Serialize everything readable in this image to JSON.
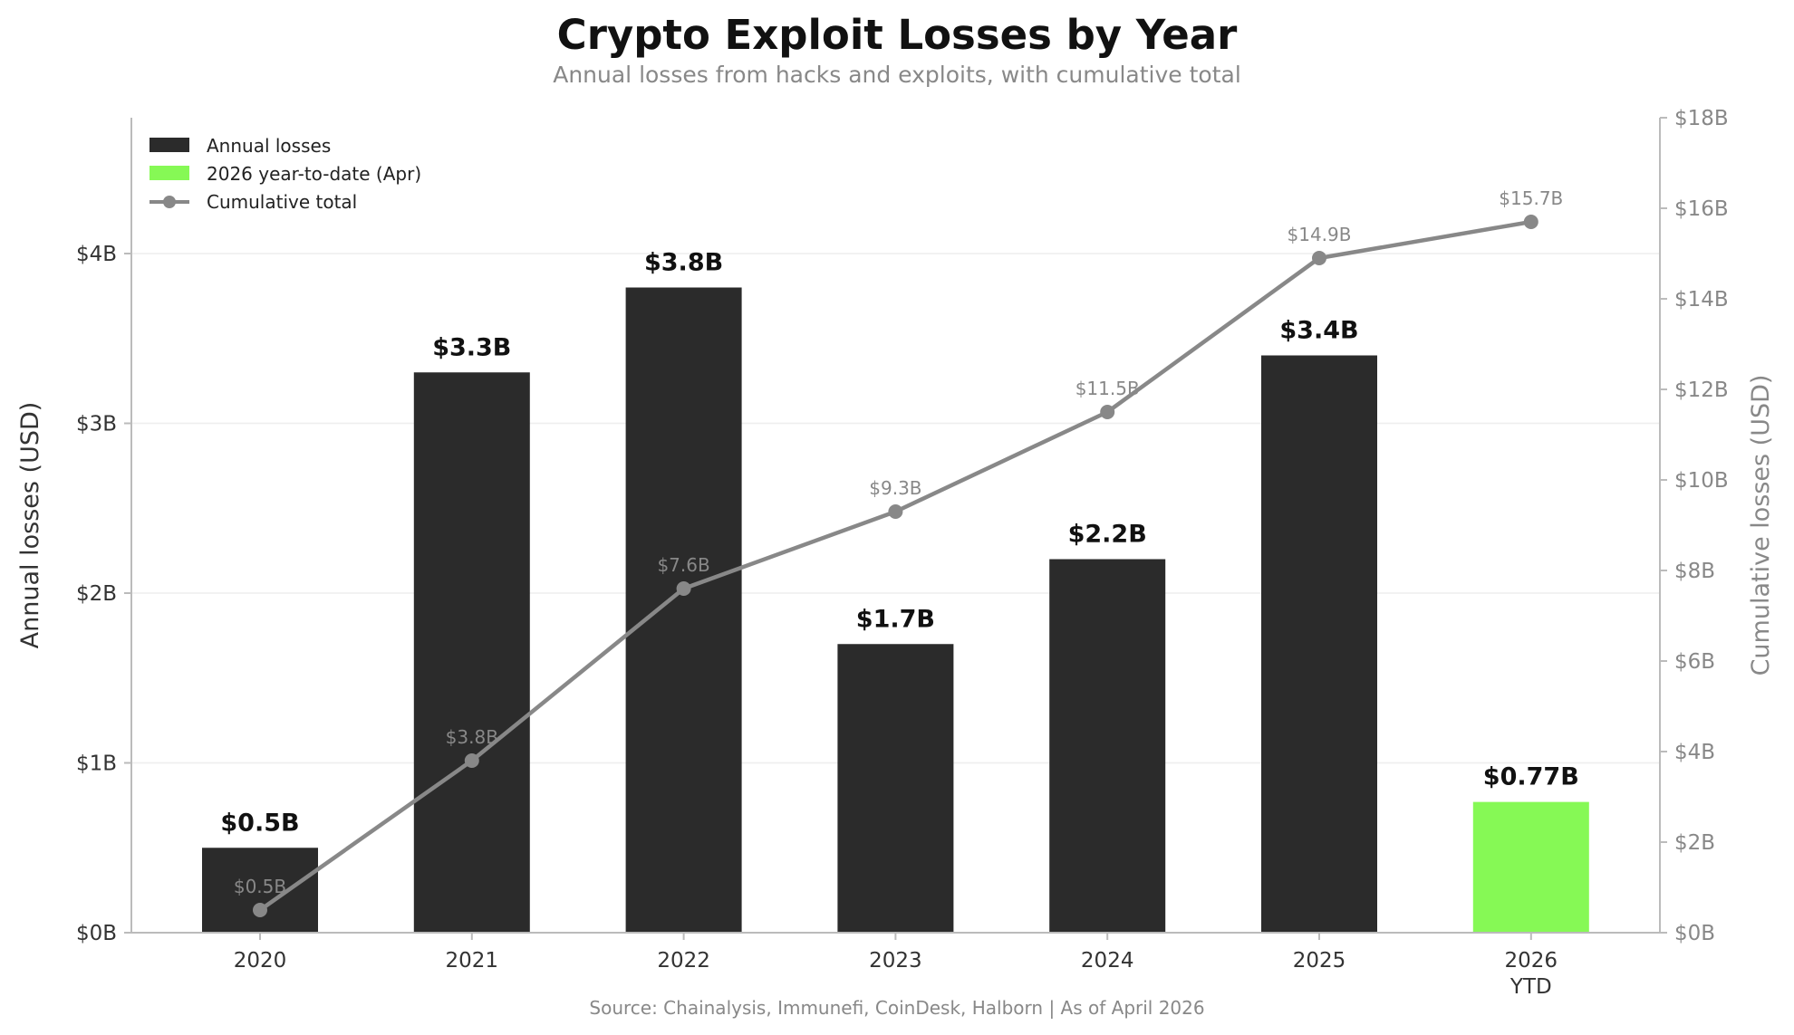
{
  "header": {
    "title": "Crypto Exploit Losses by Year",
    "subtitle": "Annual losses from hacks and exploits, with cumulative total"
  },
  "footer": {
    "source": "Source: Chainalysis, Immunefi, CoinDesk, Halborn  |  As of April 2026"
  },
  "colors": {
    "bar": "#2b2b2b",
    "ytd_bar": "#86f955",
    "line": "#888888",
    "grid": "#eeeeee",
    "axis": "#bbbbbb"
  },
  "chart_data": {
    "type": "bar",
    "title": "Crypto Exploit Losses by Year",
    "subtitle": "Annual losses from hacks and exploits, with cumulative total",
    "categories": [
      "2020",
      "2021",
      "2022",
      "2023",
      "2024",
      "2025",
      "2026"
    ],
    "category_sublabels": [
      "",
      "",
      "",
      "",
      "",
      "",
      "YTD"
    ],
    "ylabel": "Annual losses (USD)",
    "y2label": "Cumulative losses (USD)",
    "ylim": [
      0,
      4.8
    ],
    "y_ticks": [
      0,
      1,
      2,
      3,
      4
    ],
    "y_tick_labels": [
      "$0B",
      "$1B",
      "$2B",
      "$3B",
      "$4B"
    ],
    "y2lim": [
      0,
      18
    ],
    "y2_ticks": [
      0,
      2,
      4,
      6,
      8,
      10,
      12,
      14,
      16,
      18
    ],
    "y2_tick_labels": [
      "$0B",
      "$2B",
      "$4B",
      "$6B",
      "$8B",
      "$10B",
      "$12B",
      "$14B",
      "$16B",
      "$18B"
    ],
    "grid": true,
    "legend_position": "top-left",
    "legend": [
      {
        "label": "Annual losses",
        "kind": "bar"
      },
      {
        "label": "2026 year-to-date (Apr)",
        "kind": "ytd"
      },
      {
        "label": "Cumulative total",
        "kind": "line"
      }
    ],
    "series": [
      {
        "name": "Annual losses",
        "axis": "left",
        "kind": "bar",
        "values": [
          0.5,
          3.3,
          3.8,
          1.7,
          2.2,
          3.4,
          0.77
        ],
        "labels": [
          "$0.5B",
          "$3.3B",
          "$3.8B",
          "$1.7B",
          "$2.2B",
          "$3.4B",
          "$0.77B"
        ],
        "highlight_index": 6
      },
      {
        "name": "Cumulative total",
        "axis": "right",
        "kind": "line",
        "values": [
          0.5,
          3.8,
          7.6,
          9.3,
          11.5,
          14.9,
          15.7
        ],
        "labels": [
          "$0.5B",
          "$3.8B",
          "$7.6B",
          "$9.3B",
          "$11.5B",
          "$14.9B",
          "$15.7B"
        ]
      }
    ]
  }
}
